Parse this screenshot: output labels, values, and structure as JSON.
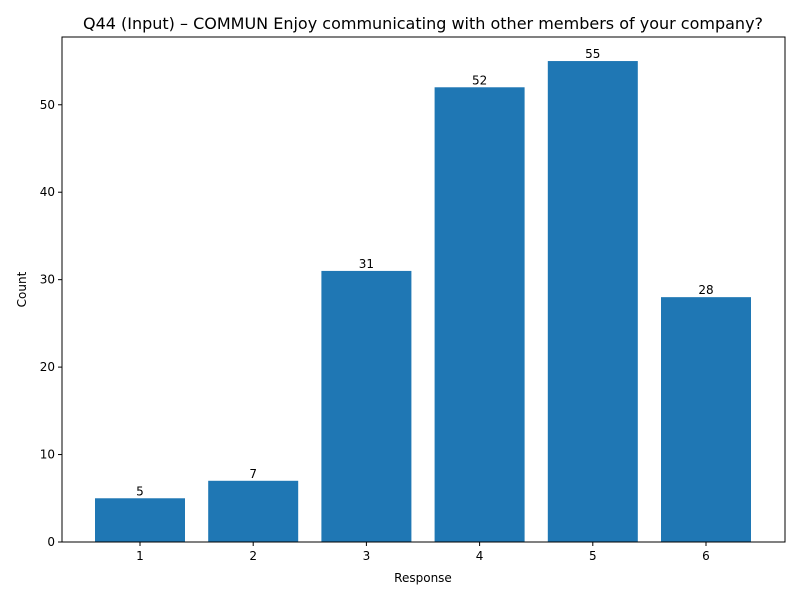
{
  "chart_data": {
    "type": "bar",
    "title": "Q44 (Input) – COMMUN Enjoy communicating with other members of your company?",
    "xlabel": "Response",
    "ylabel": "Count",
    "categories": [
      "1",
      "2",
      "3",
      "4",
      "5",
      "6"
    ],
    "values": [
      5,
      7,
      31,
      52,
      55,
      28
    ],
    "data_labels": [
      "5",
      "7",
      "31",
      "52",
      "55",
      "28"
    ],
    "ylim": [
      0,
      57.75
    ],
    "yticks": [
      0,
      10,
      20,
      30,
      40,
      50
    ],
    "ytick_labels": [
      "0",
      "10",
      "20",
      "30",
      "40",
      "50"
    ],
    "bar_color": "#1f77b4",
    "grid": false,
    "legend": "none"
  }
}
